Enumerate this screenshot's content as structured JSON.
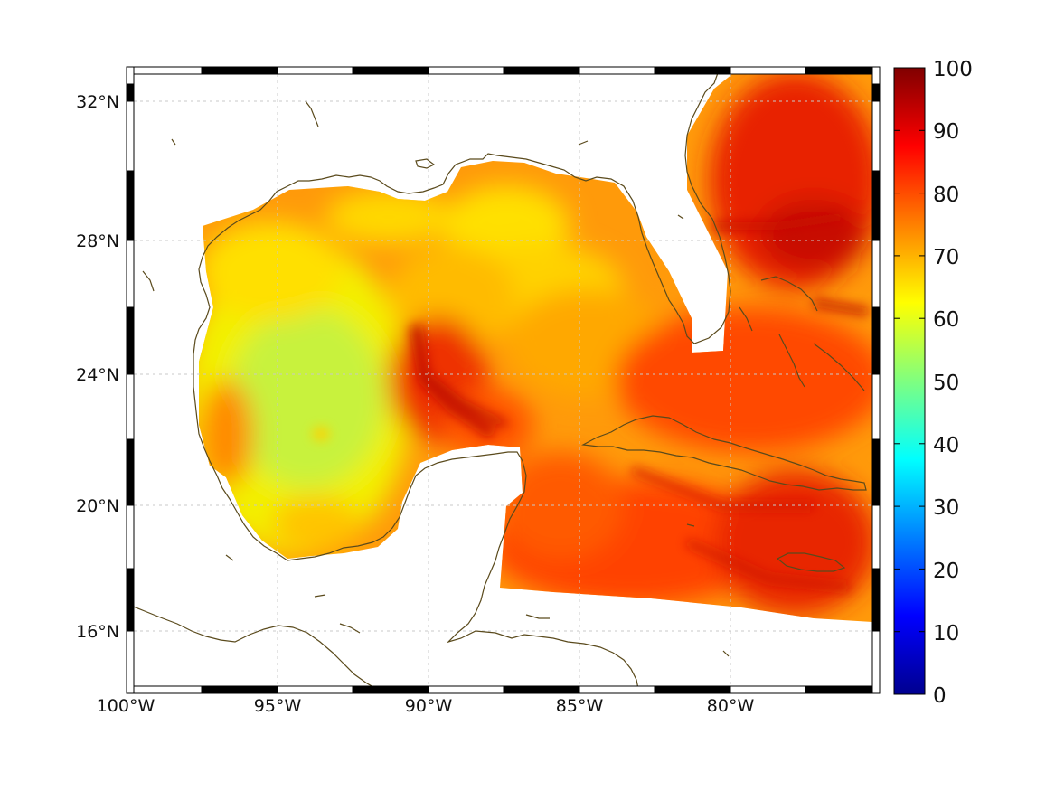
{
  "map": {
    "longitude_ticks": [
      "100°W",
      "95°W",
      "90°W",
      "85°W",
      "80°W"
    ],
    "latitude_ticks": [
      "32°N",
      "28°N",
      "24°N",
      "20°N",
      "16°N"
    ],
    "lon_range": [
      -100,
      -75
    ],
    "lat_range": [
      14.3,
      33
    ],
    "coastline_color": "#5a4a1c",
    "frame_colors": [
      "#000000",
      "#ffffff"
    ],
    "grid": true
  },
  "colorbar": {
    "ticks": [
      "0",
      "10",
      "20",
      "30",
      "40",
      "50",
      "60",
      "70",
      "80",
      "90",
      "100"
    ],
    "range": [
      0,
      100
    ],
    "colormap": "jet"
  }
}
